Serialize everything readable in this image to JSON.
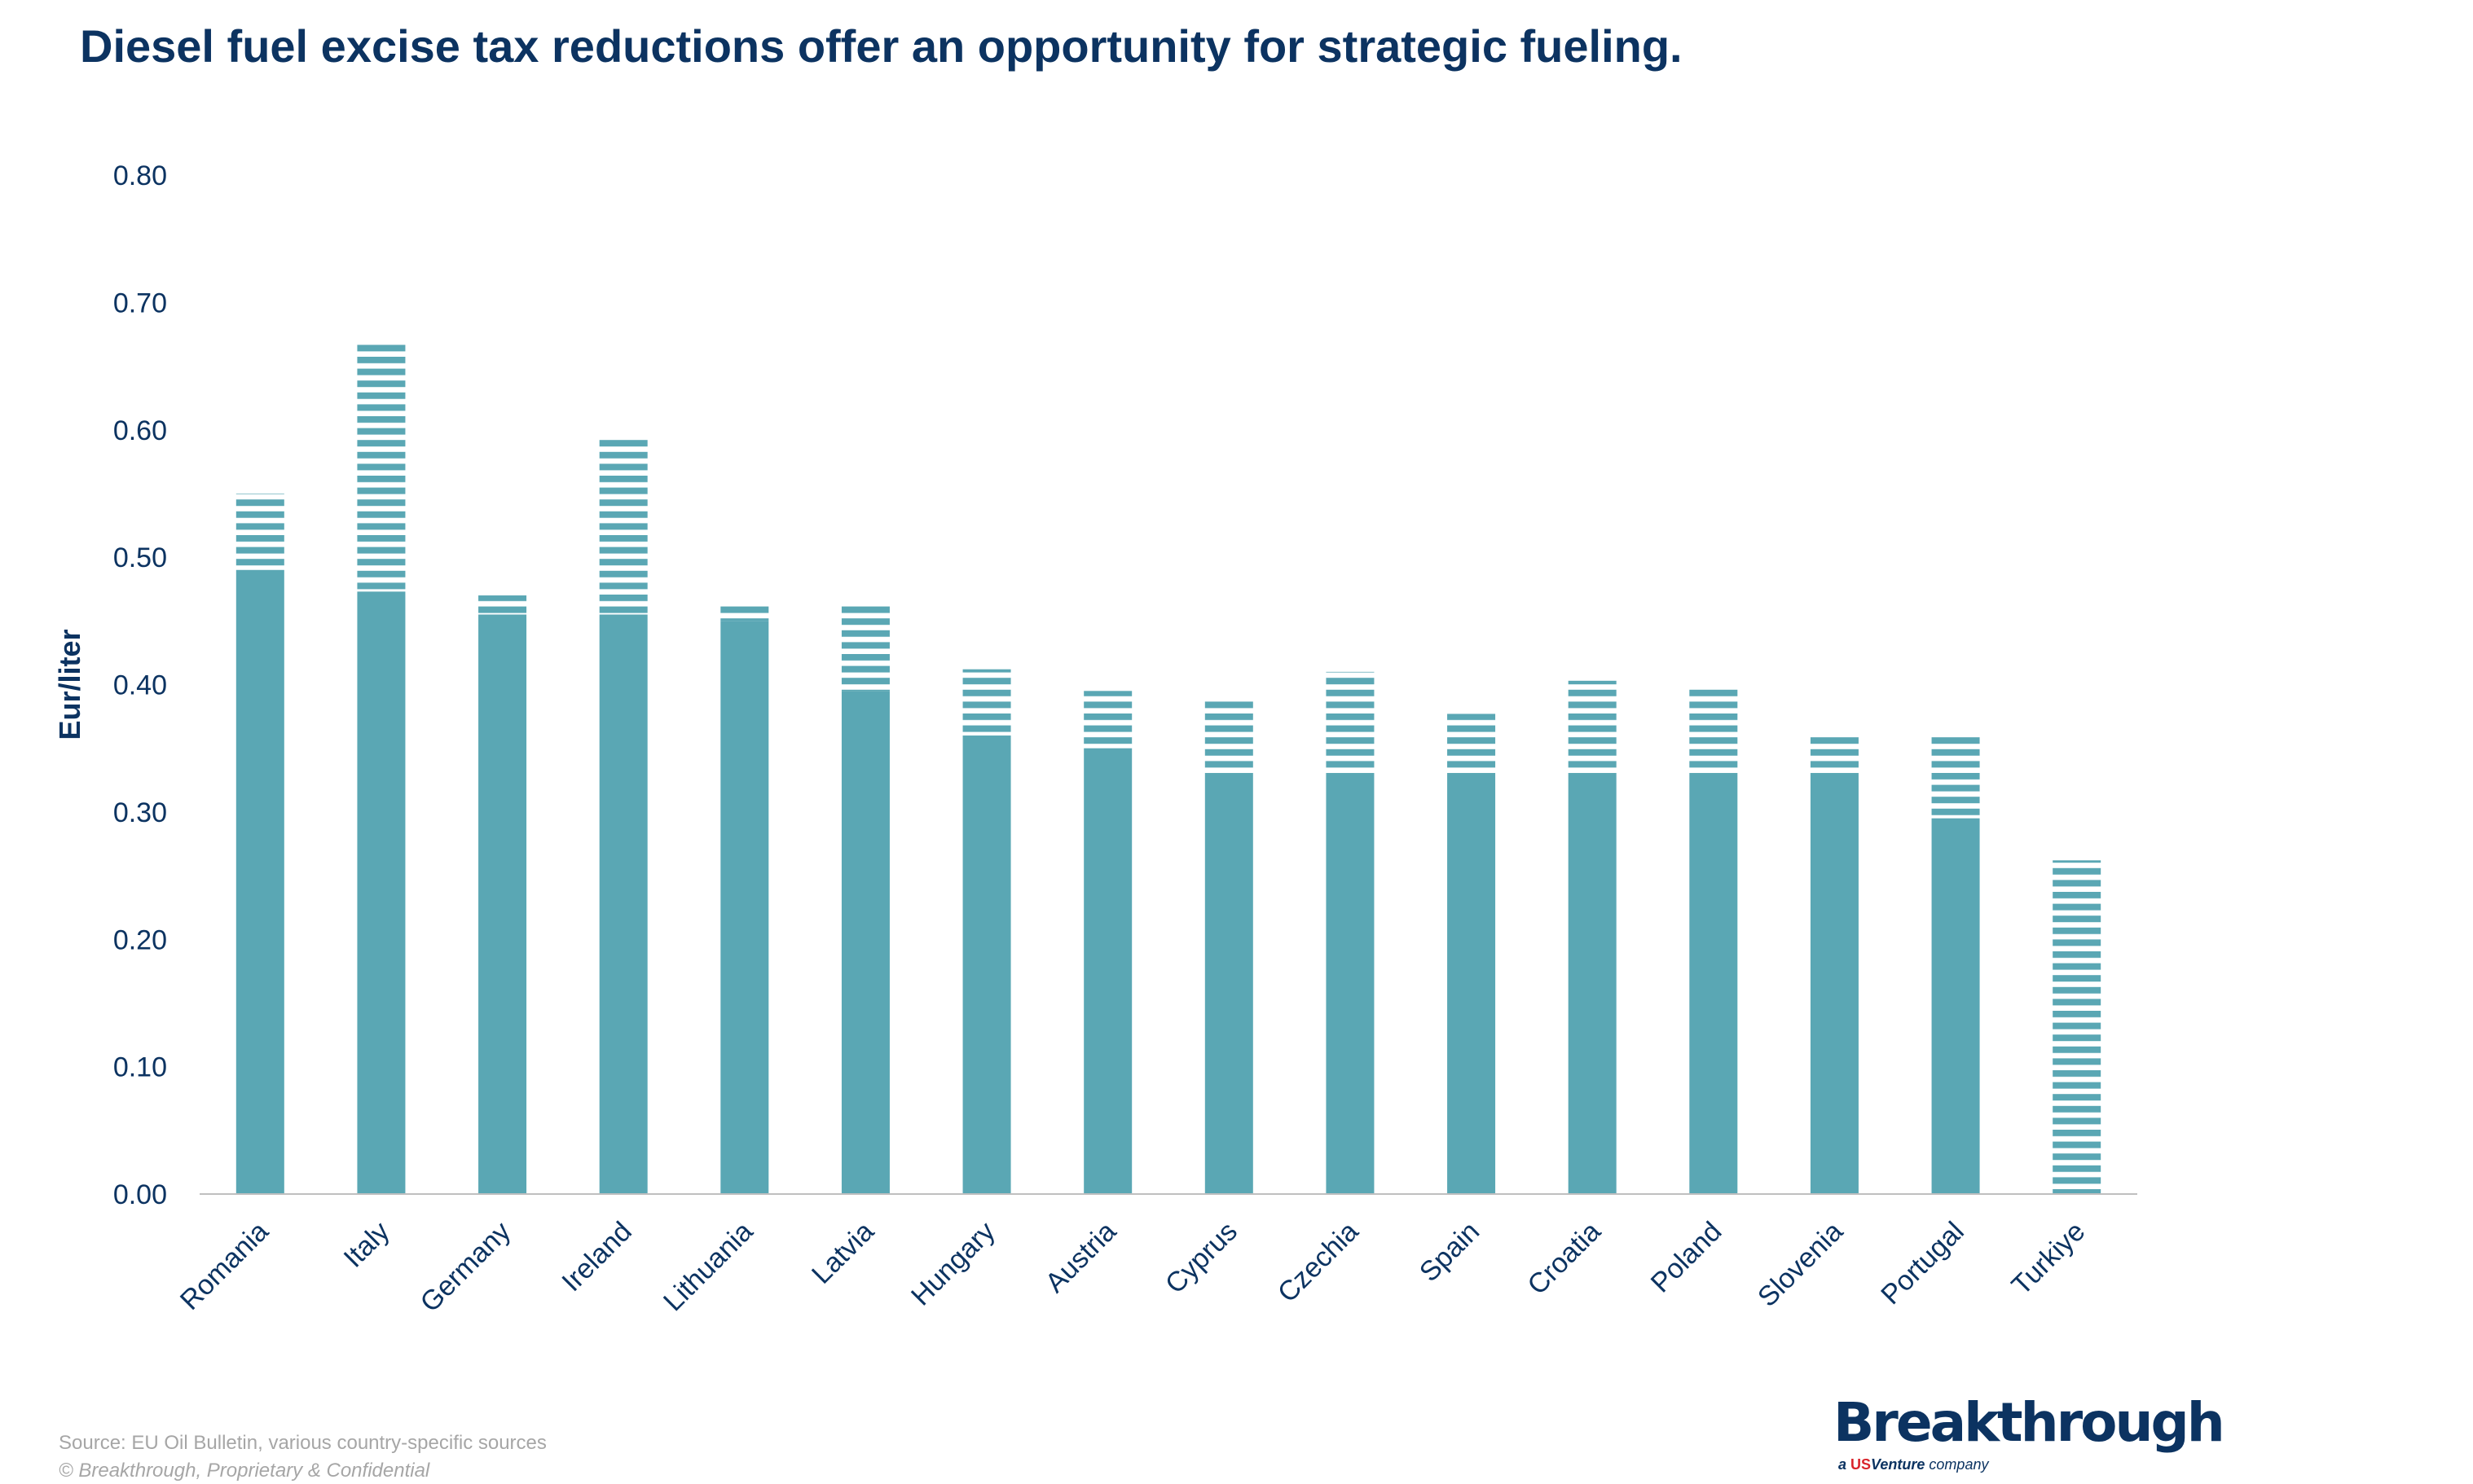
{
  "title": "Diesel fuel excise tax reductions offer an opportunity for strategic fueling.",
  "footer": {
    "source": "Source: EU Oil Bulletin, various country-specific sources",
    "copyright": "© Breakthrough, Proprietary & Confidential"
  },
  "logo": {
    "name": "Breakthrough",
    "tagline_prefix": "a",
    "tagline_brand_us": "US",
    "tagline_brand": "Venture",
    "tagline_suffix": "company"
  },
  "colors": {
    "bar": "#5aa7b4",
    "title": "#0c3361",
    "axis_text": "#0c3361"
  },
  "chart_data": {
    "type": "bar",
    "stacked": true,
    "ylabel": "Eur/liter",
    "xlabel": "",
    "ylim": [
      0,
      0.8
    ],
    "yticks": [
      "0.00",
      "0.10",
      "0.20",
      "0.30",
      "0.40",
      "0.50",
      "0.60",
      "0.70",
      "0.80"
    ],
    "grid": false,
    "legend": "none",
    "categories": [
      "Romania",
      "Italy",
      "Germany",
      "Ireland",
      "Lithuania",
      "Latvia",
      "Hungary",
      "Austria",
      "Cyprus",
      "Czechia",
      "Spain",
      "Croatia",
      "Poland",
      "Slovenia",
      "Portugal",
      "Turkiye"
    ],
    "series": [
      {
        "style": "solid",
        "values": [
          0.49,
          0.473,
          0.455,
          0.455,
          0.45,
          0.395,
          0.36,
          0.35,
          0.33,
          0.33,
          0.33,
          0.33,
          0.33,
          0.33,
          0.295,
          0.0
        ]
      },
      {
        "style": "horizontal-stripes",
        "values": [
          0.06,
          0.197,
          0.015,
          0.14,
          0.015,
          0.067,
          0.052,
          0.045,
          0.06,
          0.08,
          0.047,
          0.073,
          0.07,
          0.032,
          0.065,
          0.262
        ]
      }
    ]
  }
}
